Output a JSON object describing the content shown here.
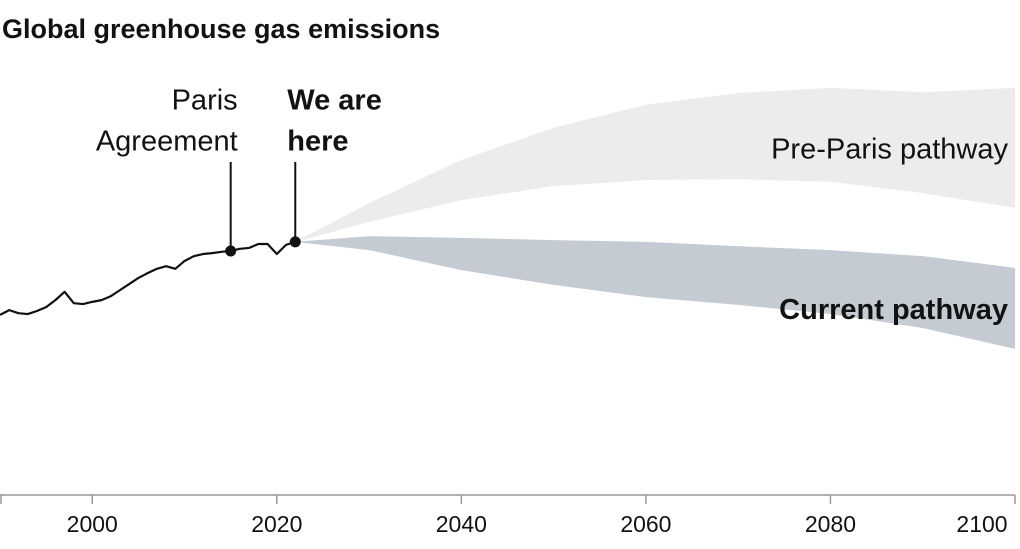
{
  "chart_data": {
    "type": "line",
    "title": "Global greenhouse gas emissions",
    "xlim": [
      1990,
      2100
    ],
    "ylim": [
      0,
      100
    ],
    "xticks": [
      2000,
      2020,
      2040,
      2060,
      2080,
      2100
    ],
    "series": [
      {
        "type": "line",
        "color": "#111111",
        "x": [
          1990,
          1991,
          1992,
          1993,
          1994,
          1995,
          1996,
          1997,
          1998,
          1999,
          2000,
          2001,
          2002,
          2003,
          2004,
          2005,
          2006,
          2007,
          2008,
          2009,
          2010,
          2011,
          2012,
          2013,
          2014,
          2015,
          2016,
          2017,
          2018,
          2019,
          2020,
          2021,
          2022
        ],
        "values": [
          41.4,
          42.5,
          41.8,
          41.6,
          42.3,
          43.2,
          44.8,
          46.7,
          44.1,
          43.9,
          44.4,
          44.8,
          45.7,
          47.1,
          48.5,
          49.9,
          51.0,
          52.0,
          52.6,
          52.0,
          53.8,
          54.9,
          55.4,
          55.6,
          55.9,
          56.1,
          56.6,
          56.8,
          57.7,
          57.7,
          55.4,
          57.5,
          58.2
        ]
      },
      {
        "type": "band",
        "name": "Pre-Paris pathway",
        "color": "#ececec",
        "bold": false,
        "x": [
          2022,
          2030,
          2040,
          2050,
          2060,
          2070,
          2080,
          2090,
          2100
        ],
        "high": [
          58.2,
          67.1,
          77.0,
          84.4,
          89.7,
          92.4,
          93.6,
          92.6,
          93.6
        ],
        "low": [
          58.2,
          62.8,
          67.8,
          71.0,
          72.4,
          72.6,
          72.0,
          69.4,
          66.0
        ]
      },
      {
        "type": "band",
        "name": "Current pathway",
        "color": "#c5cbd3",
        "bold": true,
        "x": [
          2022,
          2030,
          2040,
          2050,
          2060,
          2070,
          2080,
          2090,
          2100
        ],
        "high": [
          58.2,
          59.5,
          59.1,
          58.6,
          58.2,
          57.2,
          56.3,
          54.9,
          52.2
        ],
        "low": [
          58.2,
          56.3,
          51.7,
          48.3,
          45.5,
          43.7,
          41.6,
          38.4,
          33.6
        ]
      }
    ],
    "annotations": [
      {
        "text": [
          "Paris",
          "Agreement"
        ],
        "x": 2015,
        "point": 25,
        "bold": false
      },
      {
        "text": [
          "We are",
          "here"
        ],
        "x": 2022,
        "point": 32,
        "bold": true
      }
    ]
  }
}
